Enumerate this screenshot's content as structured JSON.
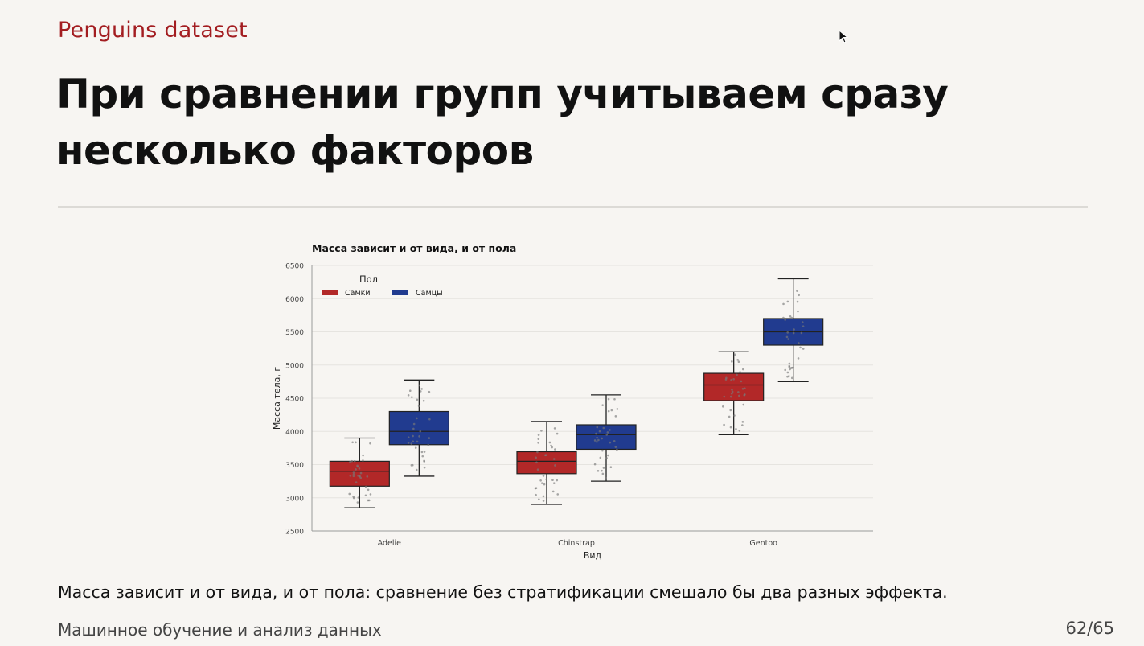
{
  "slide": {
    "kicker": "Penguins dataset",
    "title": "При сравнении групп учитываем сразу несколько факторов",
    "caption": "Масса зависит и от вида, и от пола: сравнение без стратификации смешало бы два разных эффекта.",
    "footer_course": "Машинное обучение и анализ данных",
    "page_number": "62/65"
  },
  "colors": {
    "accent": "#a31d21",
    "female": "#b22828",
    "male": "#213b8f"
  },
  "chart_data": {
    "type": "box",
    "title": "Масса зависит и от вида, и от пола",
    "xlabel": "Вид",
    "ylabel": "Масса тела, г",
    "ylim": [
      2500,
      6500
    ],
    "yticks": [
      2500,
      3000,
      3500,
      4000,
      4500,
      5000,
      5500,
      6000,
      6500
    ],
    "grid": true,
    "legend": {
      "title": "Пол",
      "position": "top-left"
    },
    "categories": [
      "Adelie",
      "Chinstrap",
      "Gentoo"
    ],
    "series": [
      {
        "name": "Самки",
        "color": "#b22828",
        "boxes": [
          {
            "min": 2850,
            "q1": 3175,
            "median": 3400,
            "q3": 3550,
            "max": 3900
          },
          {
            "min": 2900,
            "q1": 3363,
            "median": 3550,
            "q3": 3694,
            "max": 4150
          },
          {
            "min": 3950,
            "q1": 4463,
            "median": 4700,
            "q3": 4875,
            "max": 5200
          }
        ]
      },
      {
        "name": "Самцы",
        "color": "#213b8f",
        "boxes": [
          {
            "min": 3325,
            "q1": 3800,
            "median": 4000,
            "q3": 4300,
            "max": 4775
          },
          {
            "min": 3250,
            "q1": 3731,
            "median": 3950,
            "q3": 4100,
            "max": 4550
          },
          {
            "min": 4750,
            "q1": 5300,
            "median": 5500,
            "q3": 5700,
            "max": 6300
          }
        ]
      }
    ]
  }
}
